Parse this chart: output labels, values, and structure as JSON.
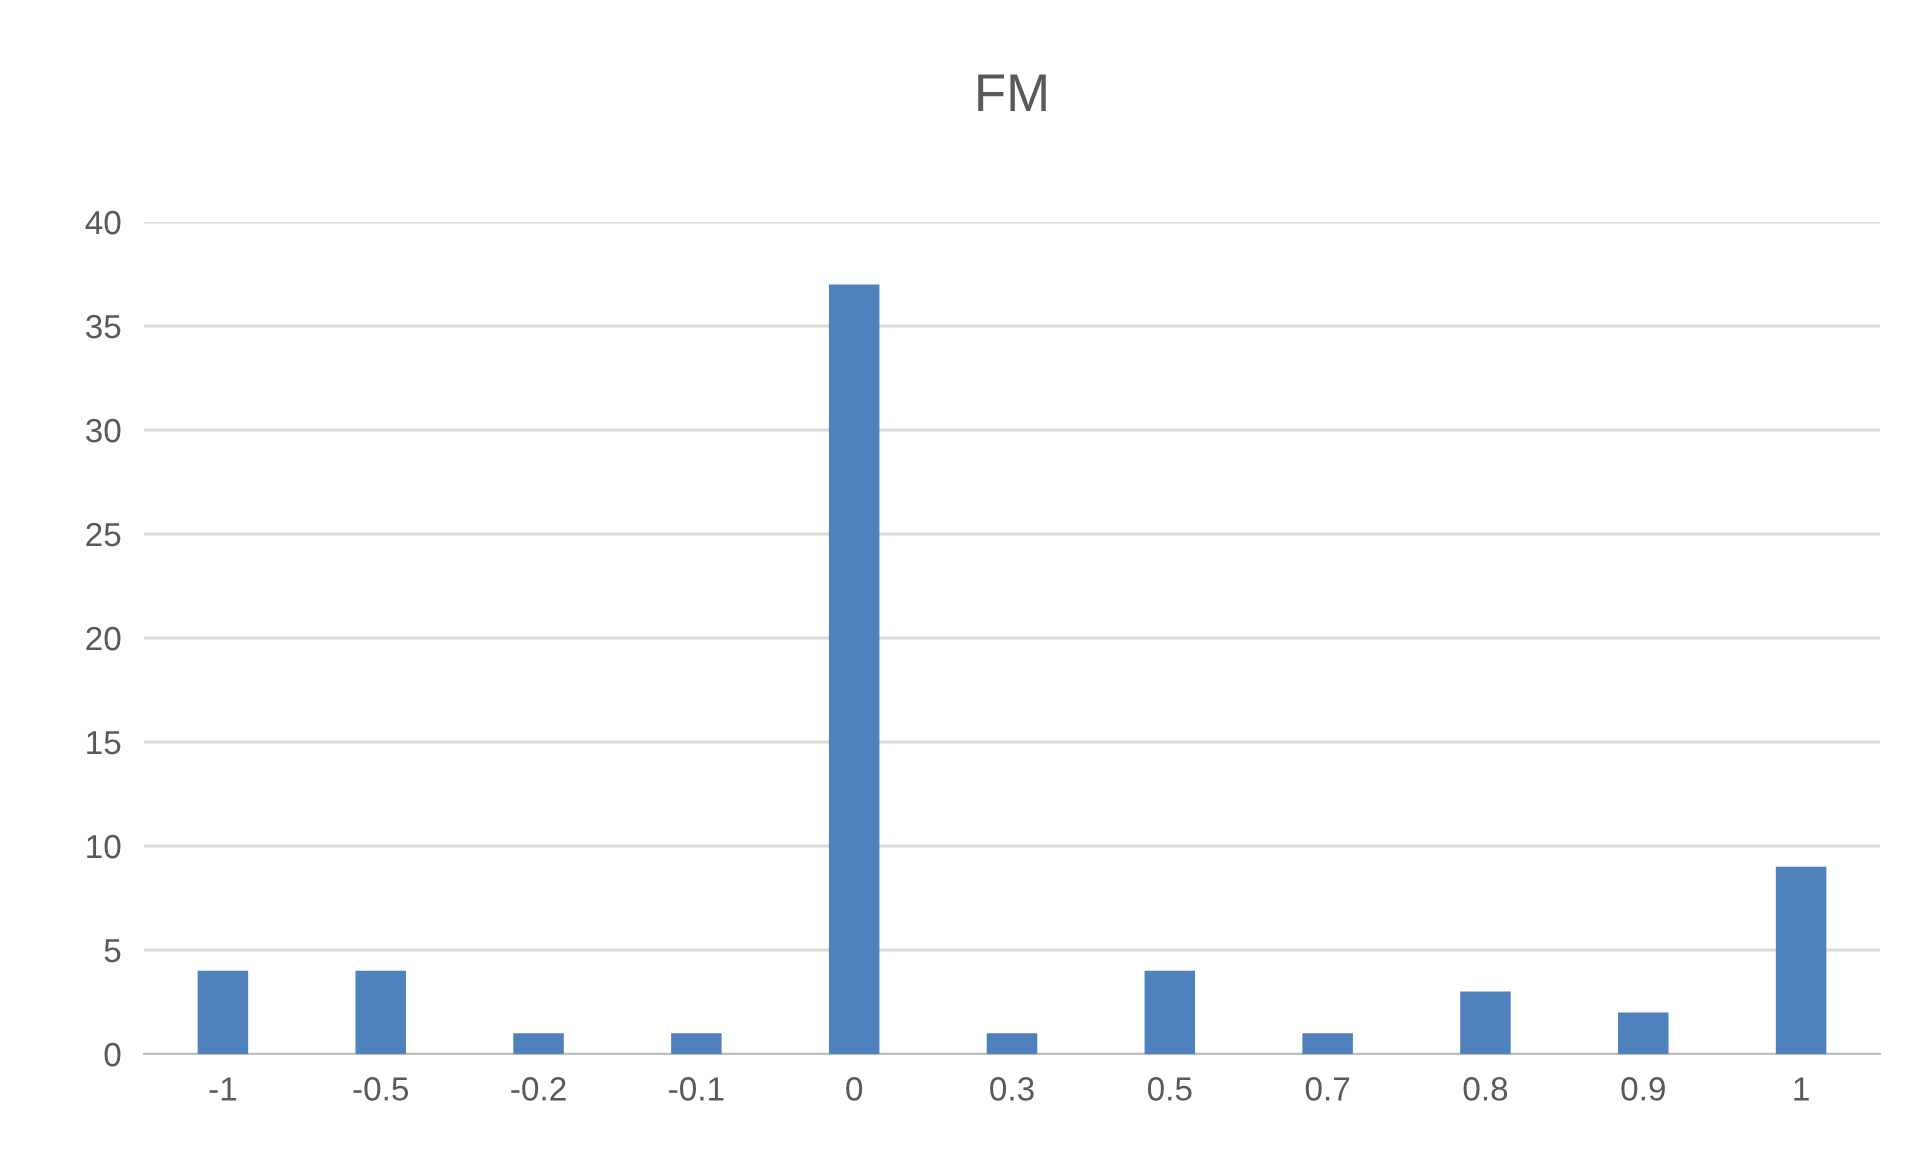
{
  "chart_data": {
    "type": "bar",
    "title": "FM",
    "categories": [
      "-1",
      "-0.5",
      "-0.2",
      "-0.1",
      "0",
      "0.3",
      "0.5",
      "0.7",
      "0.8",
      "0.9",
      "1"
    ],
    "values": [
      4,
      4,
      1,
      1,
      37,
      1,
      4,
      1,
      3,
      2,
      9
    ],
    "color": "#4f81bd",
    "ylim": [
      0,
      40
    ],
    "yticks": [
      0,
      5,
      10,
      15,
      20,
      25,
      30,
      35,
      40
    ],
    "grid": "y"
  }
}
